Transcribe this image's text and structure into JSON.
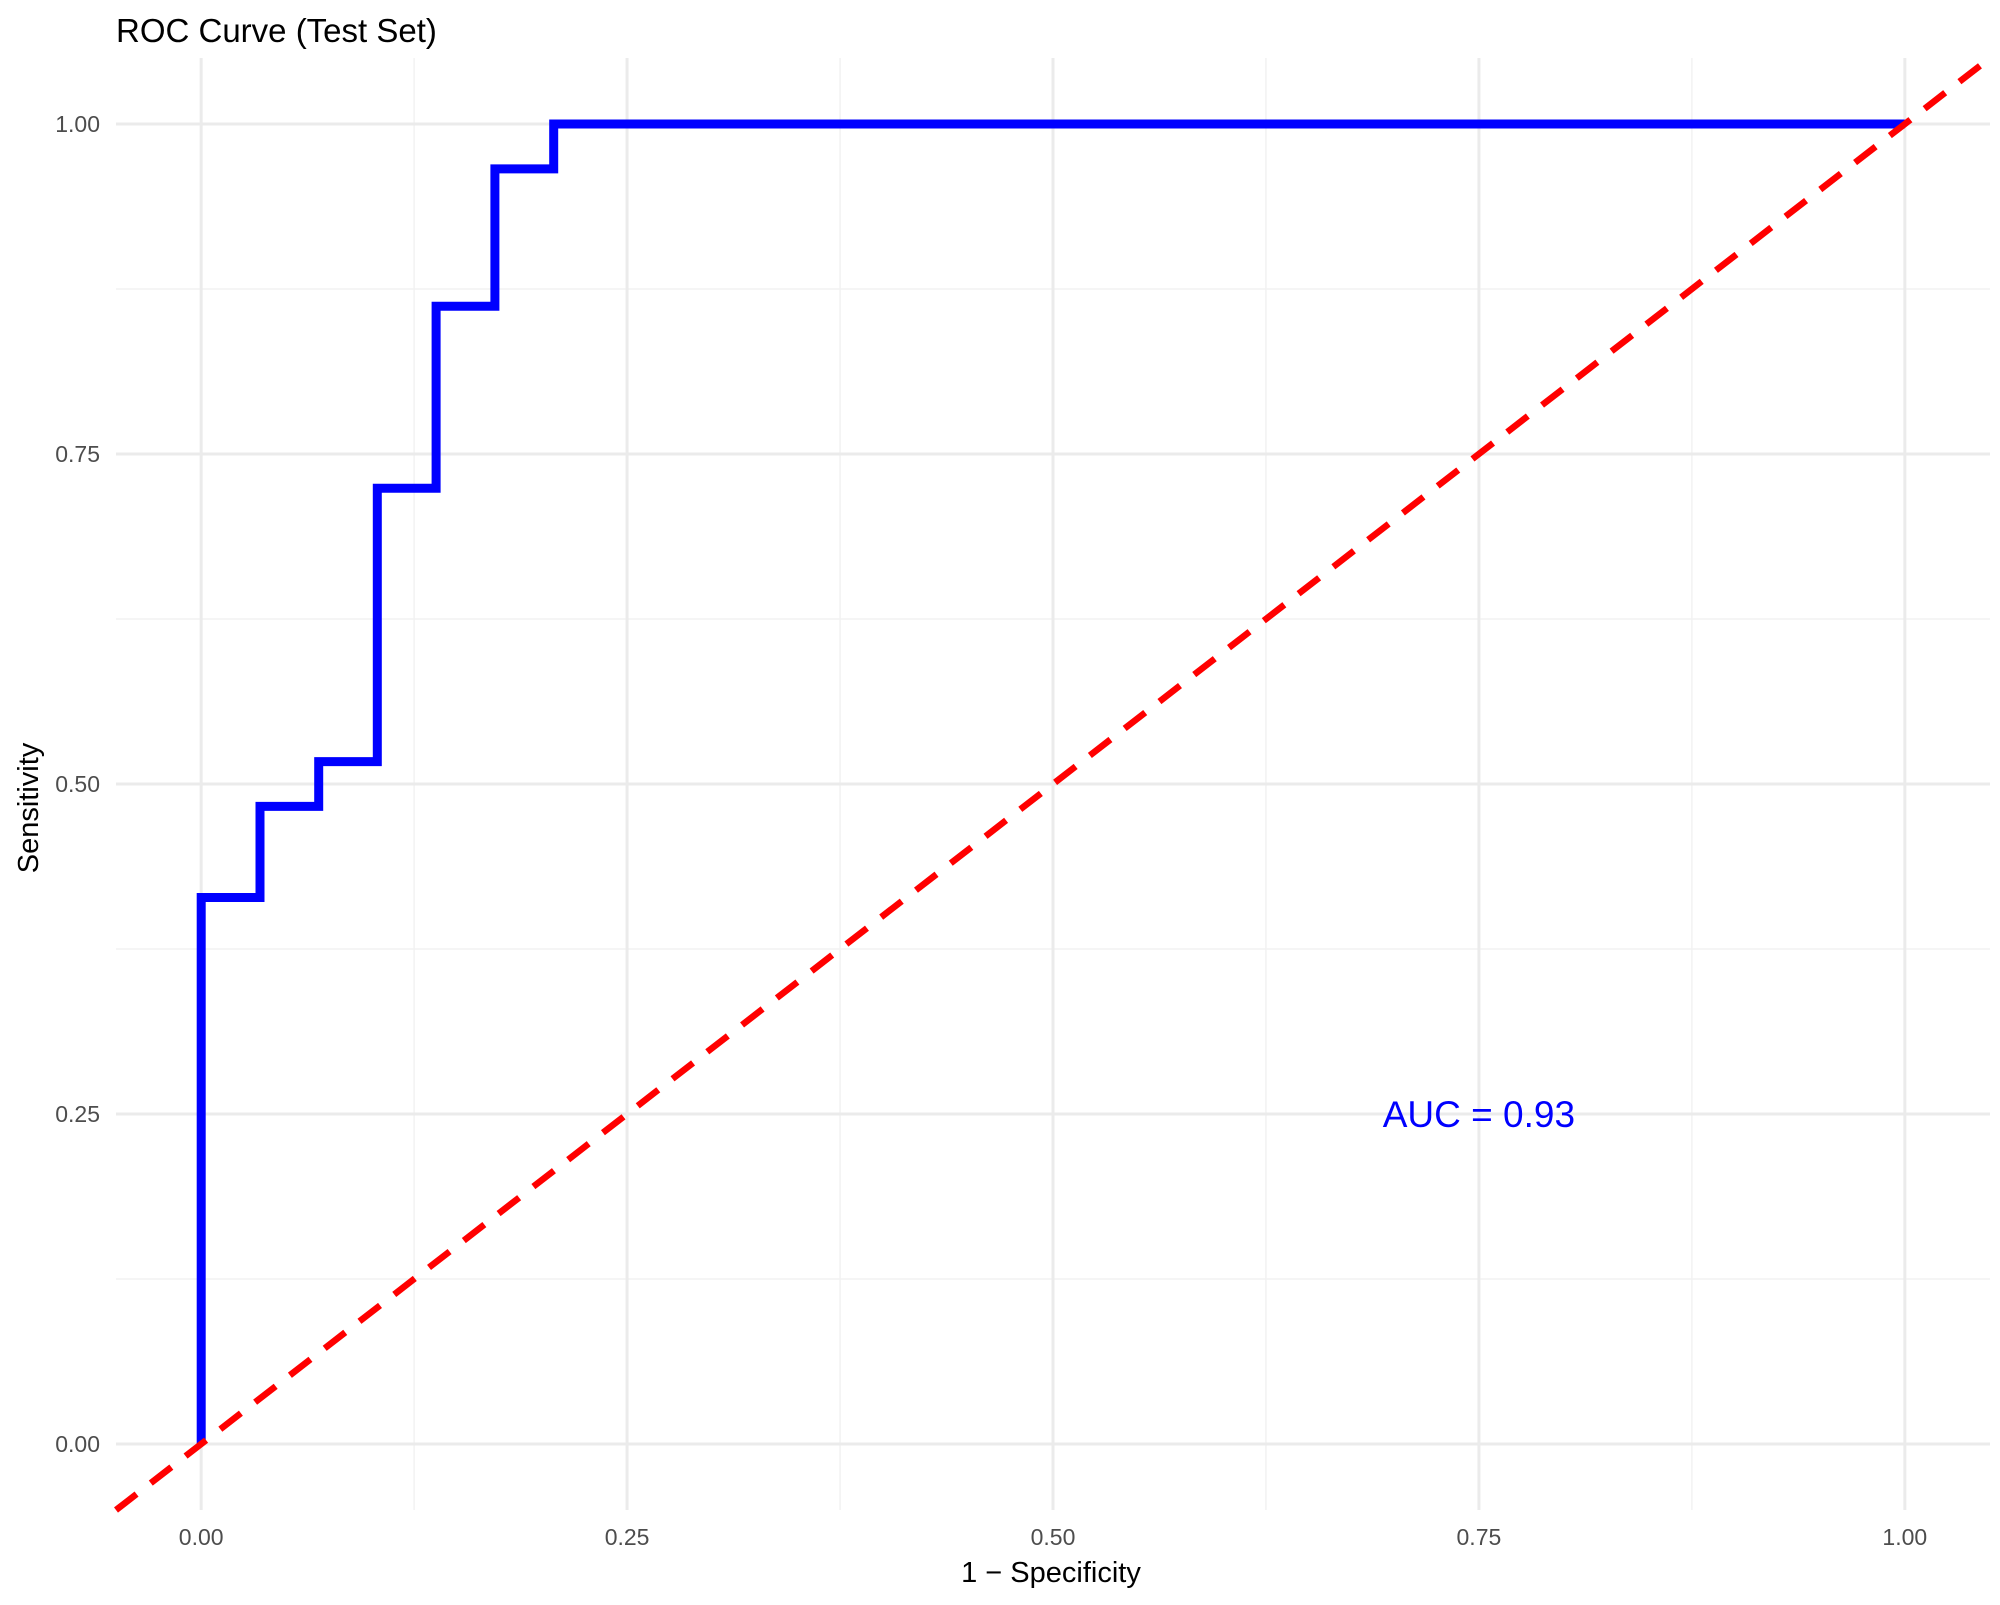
{
  "chart_data": {
    "type": "line",
    "title": "ROC Curve (Test Set)",
    "xlabel": "1 − Specificity",
    "ylabel": "Sensitivity",
    "xlim": [
      -0.05,
      1.05
    ],
    "ylim": [
      -0.05,
      1.05
    ],
    "x_ticks": [
      "0.00",
      "0.25",
      "0.50",
      "0.75",
      "1.00"
    ],
    "y_ticks": [
      "0.00",
      "0.25",
      "0.50",
      "0.75",
      "1.00"
    ],
    "x_tick_values": [
      0,
      0.25,
      0.5,
      0.75,
      1.0
    ],
    "y_tick_values": [
      0,
      0.25,
      0.5,
      0.75,
      1.0
    ],
    "grid": true,
    "series": [
      {
        "color": "#0000ff",
        "style": "step",
        "points": [
          [
            0.0,
            0.0
          ],
          [
            0.0,
            0.414
          ],
          [
            0.0345,
            0.414
          ],
          [
            0.0345,
            0.483
          ],
          [
            0.069,
            0.483
          ],
          [
            0.069,
            0.517
          ],
          [
            0.1034,
            0.517
          ],
          [
            0.1034,
            0.724
          ],
          [
            0.1379,
            0.724
          ],
          [
            0.1379,
            0.862
          ],
          [
            0.1724,
            0.862
          ],
          [
            0.1724,
            0.966
          ],
          [
            0.2069,
            0.966
          ],
          [
            0.2069,
            1.0
          ],
          [
            1.0,
            1.0
          ]
        ]
      },
      {
        "color": "#ff0000",
        "style": "dashed",
        "intercept": 0,
        "slope": 1
      }
    ],
    "annotations": [
      {
        "text": "AUC = 0.93",
        "x": 0.75,
        "y": 0.25,
        "color": "#0000ff"
      }
    ]
  }
}
